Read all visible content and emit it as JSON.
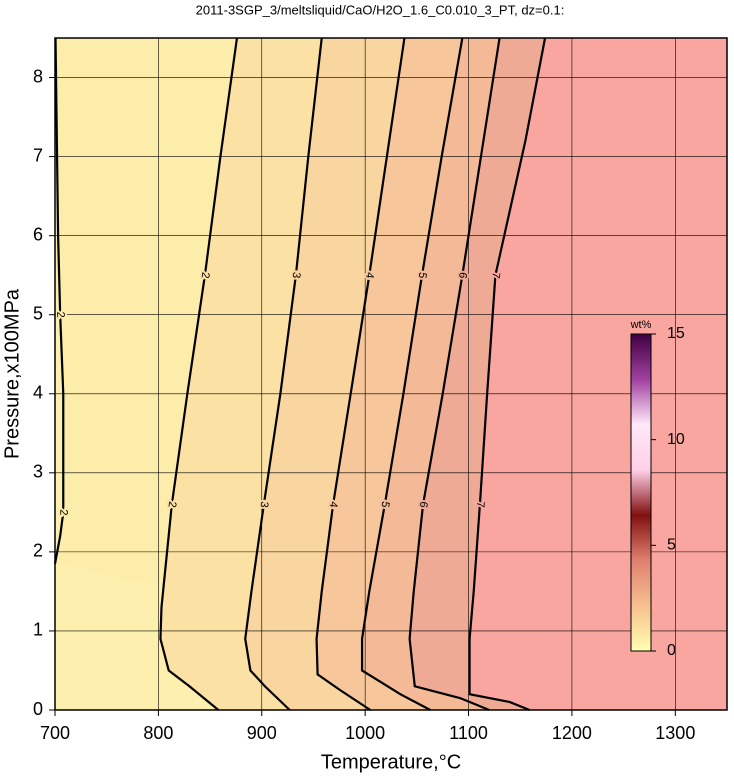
{
  "chart_data": {
    "type": "contour",
    "title": "2011-3SGP_3/meltsliquid/CaO/H2O_1.6_C0.010_3_PT, dz=0.1:",
    "xlabel": "Temperature,°C",
    "ylabel": "Pressure,x100MPa",
    "xlim": [
      700,
      1350
    ],
    "xticks": [
      700,
      800,
      900,
      1000,
      1100,
      1200,
      1300
    ],
    "ylim": [
      0,
      8.5
    ],
    "yticks": [
      0,
      1,
      2,
      3,
      4,
      5,
      6,
      7,
      8
    ],
    "grid": true,
    "background": "#fdf0ae",
    "series": [
      {
        "name": "2",
        "color": "#fdedaa",
        "x": [
          700.5,
          703,
          705,
          708,
          708,
          705,
          700
        ],
        "y": [
          8.5,
          6,
          5,
          4,
          2.5,
          2.2,
          1.85
        ]
      },
      {
        "name": "2",
        "color": "#fbe2a4",
        "x": [
          876,
          860,
          845,
          828,
          813,
          803,
          802,
          810,
          830,
          858
        ],
        "y": [
          8.5,
          7,
          5.5,
          4,
          2.6,
          1.3,
          0.9,
          0.5,
          0.3,
          0
        ]
      },
      {
        "name": "3",
        "color": "#f9d59f",
        "x": [
          958,
          945,
          933,
          918,
          902,
          890,
          884,
          889,
          903,
          927
        ],
        "y": [
          8.5,
          7,
          5.5,
          4,
          2.6,
          1.5,
          0.9,
          0.5,
          0.3,
          0
        ]
      },
      {
        "name": "4",
        "color": "#f7c79b",
        "x": [
          1038,
          1021,
          1004,
          986,
          969,
          958,
          953,
          954,
          976,
          1005
        ],
        "y": [
          8.5,
          7,
          5.5,
          4,
          2.6,
          1.5,
          0.9,
          0.45,
          0.25,
          0
        ]
      },
      {
        "name": "5",
        "color": "#f4b996",
        "x": [
          1094,
          1074,
          1055,
          1037,
          1019,
          1004,
          997,
          997,
          1034,
          1063
        ],
        "y": [
          8.5,
          7,
          5.5,
          4,
          2.6,
          1.5,
          0.9,
          0.5,
          0.2,
          0
        ]
      },
      {
        "name": "6",
        "color": "#efaa96",
        "x": [
          1130,
          1112,
          1094,
          1075,
          1056,
          1047,
          1043,
          1048,
          1092,
          1120
        ],
        "y": [
          8.5,
          7,
          5.5,
          4,
          2.6,
          1.5,
          0.9,
          0.3,
          0.15,
          0
        ]
      },
      {
        "name": "7",
        "color": "#f9a5a0",
        "x": [
          1174,
          1155,
          1126,
          1118,
          1111,
          1105,
          1101,
          1101,
          1140,
          1159
        ],
        "y": [
          8.5,
          7.2,
          5.5,
          4,
          2.6,
          1.5,
          0.9,
          0.2,
          0.1,
          0
        ]
      }
    ],
    "colorbar": {
      "label": "wt%",
      "lim": [
        0,
        15
      ],
      "ticks": [
        0,
        5,
        10,
        15
      ],
      "colors": [
        "#ffffb0",
        "#f7c090",
        "#e08070",
        "#801010",
        "#ffd0e8",
        "#ffe8f8",
        "#a040a0",
        "#400040"
      ]
    }
  }
}
